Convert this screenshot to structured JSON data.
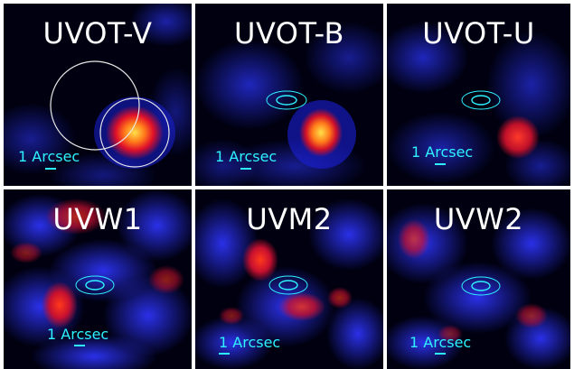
{
  "figure": {
    "panels": [
      {
        "id": "uvot-v",
        "title": "UVOT-V",
        "scale_label": "1 Arcsec",
        "marker": "circles"
      },
      {
        "id": "uvot-b",
        "title": "UVOT-B",
        "scale_label": "1 Arcsec",
        "marker": "contours"
      },
      {
        "id": "uvot-u",
        "title": "UVOT-U",
        "scale_label": "1 Arcsec",
        "marker": "contours"
      },
      {
        "id": "uvw1",
        "title": "UVW1",
        "scale_label": "1 Arcsec",
        "marker": "contours"
      },
      {
        "id": "uvm2",
        "title": "UVM2",
        "scale_label": "1 Arcsec",
        "marker": "contours"
      },
      {
        "id": "uvw2",
        "title": "UVW2",
        "scale_label": "1 Arcsec",
        "marker": "contours"
      }
    ],
    "colors": {
      "background": "#000010",
      "noise": "#1a20d8",
      "hot_red": "#ff2a1a",
      "hot_yellow": "#ffe14a",
      "label_cyan": "#2ef2ff",
      "title_white": "#ffffff",
      "circle_white": "#e8e8e8",
      "separator": "#ffffff"
    }
  }
}
